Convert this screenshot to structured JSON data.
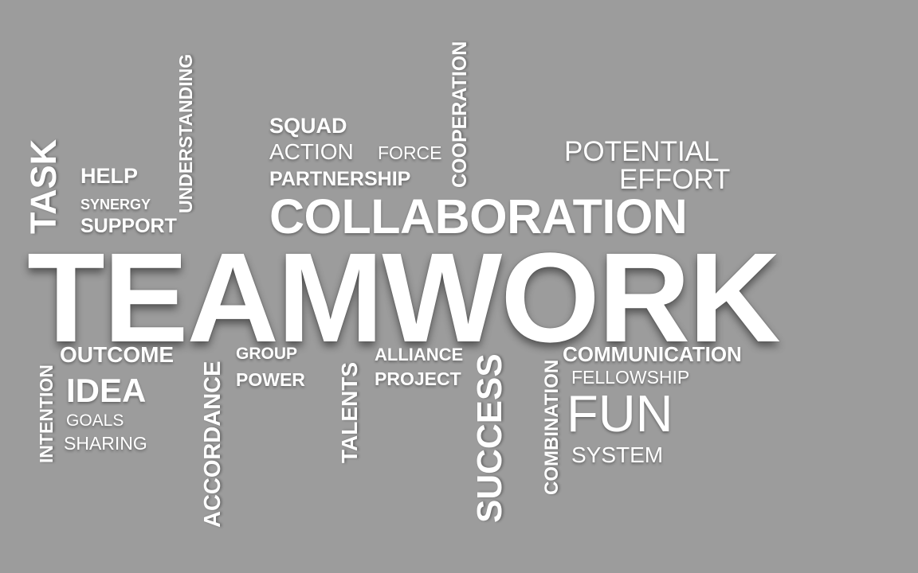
{
  "background": "#9c9c9c",
  "text_color": "#ffffff",
  "main_word": "TEAMWORK",
  "words": {
    "task": "TASK",
    "help": "HELP",
    "synergy": "SYNERGY",
    "support": "SUPPORT",
    "understanding": "UNDERSTANDING",
    "squad": "SQUAD",
    "action": "ACTION",
    "force": "FORCE",
    "partnership": "PARTNERSHIP",
    "cooperation": "COOPERATION",
    "potential": "POTENTIAL",
    "effort": "EFFORT",
    "collaboration": "COLLABORATION",
    "intention": "INTENTION",
    "outcome": "OUTCOME",
    "idea": "IDEA",
    "goals": "GOALS",
    "sharing": "SHARING",
    "accordance": "ACCORDANCE",
    "group": "GROUP",
    "power": "POWER",
    "talents": "TALENTS",
    "alliance": "ALLIANCE",
    "project": "PROJECT",
    "success": "SUCCESS",
    "combination": "COMBINATION",
    "communication": "COMMUNICATION",
    "fellowship": "FELLOWSHIP",
    "fun": "FUN",
    "system": "SYSTEM"
  }
}
